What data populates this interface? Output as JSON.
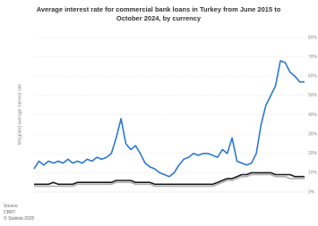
{
  "chart_data": {
    "type": "line",
    "title": "Average interest rate for commercial bank loans in Turkey from June 2015 to October 2024, by currency",
    "y_label": "Weighted average interest rate",
    "source": [
      "Source",
      "CBRT",
      "© Statista 2025"
    ],
    "ylim": [
      0,
      80
    ],
    "yticks": [
      {
        "value": 0,
        "label": "0%"
      },
      {
        "value": 10,
        "label": "10%"
      },
      {
        "value": 20,
        "label": "20%"
      },
      {
        "value": 30,
        "label": "30%"
      },
      {
        "value": 40,
        "label": "40%"
      },
      {
        "value": 50,
        "label": "50%"
      },
      {
        "value": 60,
        "label": "60%"
      },
      {
        "value": 70,
        "label": "70%"
      },
      {
        "value": 80,
        "label": "80%"
      }
    ],
    "grid": true,
    "categories": [
      null,
      null,
      null,
      null,
      null,
      null,
      null,
      null,
      null,
      null,
      null,
      null,
      null,
      null,
      null,
      null,
      null,
      null,
      null,
      null,
      null,
      null,
      null,
      null,
      null,
      null,
      null,
      null,
      null,
      null,
      null,
      null,
      null,
      null,
      null,
      null,
      null,
      null,
      null,
      null,
      null,
      null,
      null,
      null,
      null,
      null,
      null,
      null,
      null,
      null,
      null,
      null,
      null,
      null,
      null,
      null,
      null
    ],
    "series": [
      {
        "color": "#2b78d0",
        "values": [
          12,
          16,
          14,
          16,
          15,
          16,
          15,
          17,
          15,
          16,
          15,
          17,
          16,
          18,
          17,
          18,
          20,
          28,
          38,
          25,
          22,
          24,
          20,
          15,
          13,
          12,
          10,
          9,
          8,
          10,
          14,
          17,
          18,
          20,
          19,
          20,
          20,
          19,
          18,
          22,
          20,
          28,
          16,
          15,
          14,
          15,
          20,
          35,
          45,
          50,
          55,
          68,
          67,
          62,
          60,
          57,
          57
        ]
      },
      {
        "color": "#b0b0b0",
        "values": [
          3,
          3,
          3,
          3,
          3,
          3,
          3,
          3,
          3,
          4,
          4,
          4,
          4,
          4,
          4,
          4,
          4,
          5,
          5,
          5,
          5,
          4,
          4,
          4,
          4,
          3,
          3,
          3,
          3,
          3,
          3,
          3,
          3,
          3,
          3,
          3,
          3,
          3,
          4,
          5,
          6,
          6,
          7,
          8,
          8,
          9,
          9,
          9,
          9,
          9,
          8,
          8,
          8,
          7,
          7,
          7,
          7
        ]
      },
      {
        "color": "#1a1a1a",
        "values": [
          4,
          4,
          4,
          4,
          5,
          4,
          4,
          4,
          4,
          5,
          5,
          5,
          5,
          5,
          5,
          5,
          5,
          6,
          6,
          6,
          6,
          5,
          5,
          5,
          5,
          4,
          4,
          4,
          4,
          4,
          4,
          4,
          4,
          4,
          4,
          4,
          4,
          4,
          5,
          6,
          7,
          7,
          8,
          9,
          9,
          10,
          10,
          10,
          10,
          10,
          9,
          9,
          9,
          9,
          8,
          8,
          8
        ]
      }
    ]
  }
}
